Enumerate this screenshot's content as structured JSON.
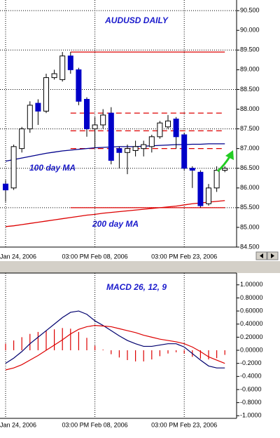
{
  "chart_data": [
    {
      "type": "candlestick",
      "title": "AUDUSD DAILY",
      "categories": [
        "Jan 24, 2006",
        null,
        null,
        null,
        null,
        null,
        null,
        null,
        null,
        null,
        null,
        "03:00 PM Feb 08, 2006",
        null,
        null,
        null,
        null,
        null,
        null,
        null,
        null,
        null,
        null,
        "03:00 PM Feb 23, 2006",
        null,
        null,
        null,
        null,
        null
      ],
      "open": [
        86.1,
        86.0,
        87.0,
        87.5,
        88.15,
        87.95,
        88.8,
        88.75,
        89.35,
        89.0,
        88.25,
        87.5,
        87.6,
        87.9,
        87.0,
        86.9,
        86.95,
        87.0,
        87.05,
        87.3,
        87.55,
        87.75,
        87.35,
        86.5,
        86.4,
        85.6,
        86.0,
        86.45
      ],
      "high": [
        86.2,
        87.1,
        87.55,
        88.2,
        88.25,
        88.9,
        89.0,
        89.45,
        89.45,
        89.05,
        88.3,
        87.8,
        88.0,
        88.05,
        87.05,
        87.1,
        87.2,
        87.2,
        87.35,
        87.7,
        87.85,
        87.8,
        87.4,
        86.55,
        86.45,
        86.1,
        86.55,
        86.55
      ],
      "low": [
        85.65,
        85.95,
        86.9,
        87.4,
        87.6,
        87.9,
        88.75,
        88.7,
        88.9,
        88.1,
        87.3,
        87.0,
        87.5,
        86.6,
        86.5,
        86.35,
        86.8,
        86.8,
        86.9,
        87.25,
        87.5,
        87.0,
        86.45,
        86.0,
        85.5,
        85.55,
        85.9,
        86.4
      ],
      "close": [
        85.95,
        87.05,
        87.5,
        88.1,
        87.95,
        88.8,
        88.9,
        89.35,
        89.0,
        88.2,
        87.5,
        87.6,
        87.85,
        86.7,
        86.9,
        87.0,
        87.05,
        87.1,
        87.3,
        87.65,
        87.7,
        87.3,
        86.5,
        86.45,
        85.55,
        86.0,
        86.45,
        86.5
      ],
      "up_color": "#ffffff",
      "down_color": "#0000c8",
      "series": [
        {
          "name": "100 day MA",
          "color": "#00008b",
          "values": [
            86.68,
            86.72,
            86.76,
            86.8,
            86.84,
            86.88,
            86.91,
            86.94,
            86.96,
            86.98,
            87.0,
            87.02,
            87.03,
            87.04,
            87.05,
            87.05,
            87.05,
            87.06,
            87.07,
            87.08,
            87.09,
            87.1,
            87.1,
            87.11,
            87.11,
            87.12,
            87.12,
            87.12
          ]
        },
        {
          "name": "200 day MA",
          "color": "#dd0000",
          "values": [
            85.02,
            85.04,
            85.07,
            85.1,
            85.13,
            85.16,
            85.19,
            85.22,
            85.25,
            85.28,
            85.31,
            85.33,
            85.36,
            85.38,
            85.4,
            85.42,
            85.44,
            85.46,
            85.48,
            85.5,
            85.52,
            85.54,
            85.57,
            85.6,
            85.62,
            85.64,
            85.66,
            85.68
          ]
        }
      ],
      "levels": [
        {
          "value": 89.45,
          "dashed": false
        },
        {
          "value": 87.9,
          "dashed": true
        },
        {
          "value": 87.45,
          "dashed": true
        },
        {
          "value": 87.0,
          "dashed": true
        },
        {
          "value": 85.5,
          "dashed": false
        }
      ],
      "level_color": "#dd0000",
      "ylim": [
        84.5,
        90.77
      ],
      "yticks": [
        {
          "value": 90.5,
          "label": "90.500"
        },
        {
          "value": 90.0,
          "label": "90.000"
        },
        {
          "value": 89.5,
          "label": "89.500"
        },
        {
          "value": 89.0,
          "label": "89.000"
        },
        {
          "value": 88.5,
          "label": "88.500"
        },
        {
          "value": 88.0,
          "label": "88.000"
        },
        {
          "value": 87.5,
          "label": "87.500"
        },
        {
          "value": 87.0,
          "label": "87.000"
        },
        {
          "value": 86.5,
          "label": "86.500"
        },
        {
          "value": 86.0,
          "label": "86.000"
        },
        {
          "value": 85.5,
          "label": "85.500"
        },
        {
          "value": 85.0,
          "label": "85.000"
        },
        {
          "value": 84.5,
          "label": "84.500"
        }
      ],
      "grid": true
    },
    {
      "type": "macd",
      "title": "MACD 26, 12, 9",
      "categories": [
        "Jan 24, 2006",
        null,
        null,
        null,
        null,
        null,
        null,
        null,
        null,
        null,
        null,
        "03:00 PM Feb 08, 2006",
        null,
        null,
        null,
        null,
        null,
        null,
        null,
        null,
        null,
        null,
        "03:00 PM Feb 23, 2006",
        null,
        null,
        null,
        null,
        null
      ],
      "lines": [
        {
          "color": "#00006e",
          "values": [
            -0.2,
            -0.12,
            -0.02,
            0.1,
            0.2,
            0.3,
            0.4,
            0.5,
            0.58,
            0.6,
            0.55,
            0.45,
            0.38,
            0.3,
            0.22,
            0.15,
            0.1,
            0.06,
            0.06,
            0.08,
            0.1,
            0.1,
            0.05,
            -0.05,
            -0.15,
            -0.24,
            -0.27,
            -0.27
          ]
        },
        {
          "color": "#dd0000",
          "values": [
            -0.3,
            -0.27,
            -0.22,
            -0.15,
            -0.08,
            0.0,
            0.08,
            0.16,
            0.25,
            0.32,
            0.36,
            0.38,
            0.37,
            0.36,
            0.33,
            0.3,
            0.27,
            0.23,
            0.2,
            0.17,
            0.15,
            0.13,
            0.1,
            0.05,
            -0.02,
            -0.1,
            -0.15,
            -0.2
          ]
        }
      ],
      "histogram": [
        0.1,
        0.15,
        0.2,
        0.25,
        0.28,
        0.3,
        0.32,
        0.34,
        0.33,
        0.28,
        0.19,
        0.07,
        0.01,
        -0.06,
        -0.11,
        -0.15,
        -0.17,
        -0.17,
        -0.14,
        -0.09,
        -0.05,
        -0.03,
        -0.05,
        -0.1,
        -0.13,
        -0.14,
        -0.12,
        -0.07
      ],
      "histogram_color": "#dd0000",
      "ylim": [
        -1.04,
        1.18
      ],
      "yticks": [
        {
          "value": 1.0,
          "label": "1.00000"
        },
        {
          "value": 0.8,
          "label": "0.80000"
        },
        {
          "value": 0.6,
          "label": "0.60000"
        },
        {
          "value": 0.4,
          "label": "0.40000"
        },
        {
          "value": 0.2,
          "label": "0.20000"
        },
        {
          "value": 0.0,
          "label": "0.00000"
        },
        {
          "value": -0.2,
          "label": "-0.2000"
        },
        {
          "value": -0.4,
          "label": "-0.4000"
        },
        {
          "value": -0.6,
          "label": "-0.6000"
        },
        {
          "value": -0.8,
          "label": "-0.8000"
        },
        {
          "value": -1.0,
          "label": "-1.0000"
        }
      ],
      "grid": false
    }
  ]
}
